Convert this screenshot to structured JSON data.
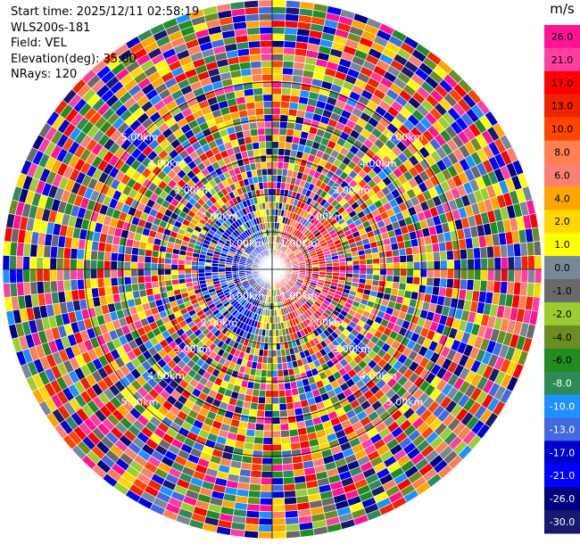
{
  "header": {
    "start_time": "Start time: 2025/12/11 02:58:19",
    "instrument": "WLS200s-181",
    "field": "Field: VEL",
    "elevation": "Elevation(deg): 35.00",
    "nrays": "NRays: 120"
  },
  "chart_data": {
    "type": "heatmap",
    "projection": "polar-ppi",
    "rays": 120,
    "gates": 40,
    "range_rings": [
      "1.00km",
      "2.00km",
      "3.00km",
      "4.00km",
      "5.00km"
    ],
    "range_ring_label_positions": [
      "upper-left",
      "upper-right",
      "lower-left",
      "lower-right"
    ],
    "colorbar": {
      "unit": "m/s",
      "ticks": [
        "26.0",
        "21.0",
        "17.0",
        "13.0",
        "10.0",
        "8.0",
        "6.0",
        "4.0",
        "2.0",
        "1.0",
        "0.0",
        "-1.0",
        "-2.0",
        "-4.0",
        "-6.0",
        "-8.0",
        "-10.0",
        "-13.0",
        "-17.0",
        "-21.0",
        "-26.0",
        "-30.0"
      ],
      "colors": [
        "#ff1493",
        "#ff3fa0",
        "#ff0000",
        "#ee2400",
        "#ff4500",
        "#ff7f50",
        "#fa8072",
        "#ffa500",
        "#ffd700",
        "#ffff00",
        "#778899",
        "#696969",
        "#9acd32",
        "#6b8e23",
        "#228b22",
        "#2e8b57",
        "#1e90ff",
        "#4169e1",
        "#0000cd",
        "#0000ff",
        "#000080",
        "#191970"
      ]
    },
    "grid": true,
    "legend": "right"
  }
}
